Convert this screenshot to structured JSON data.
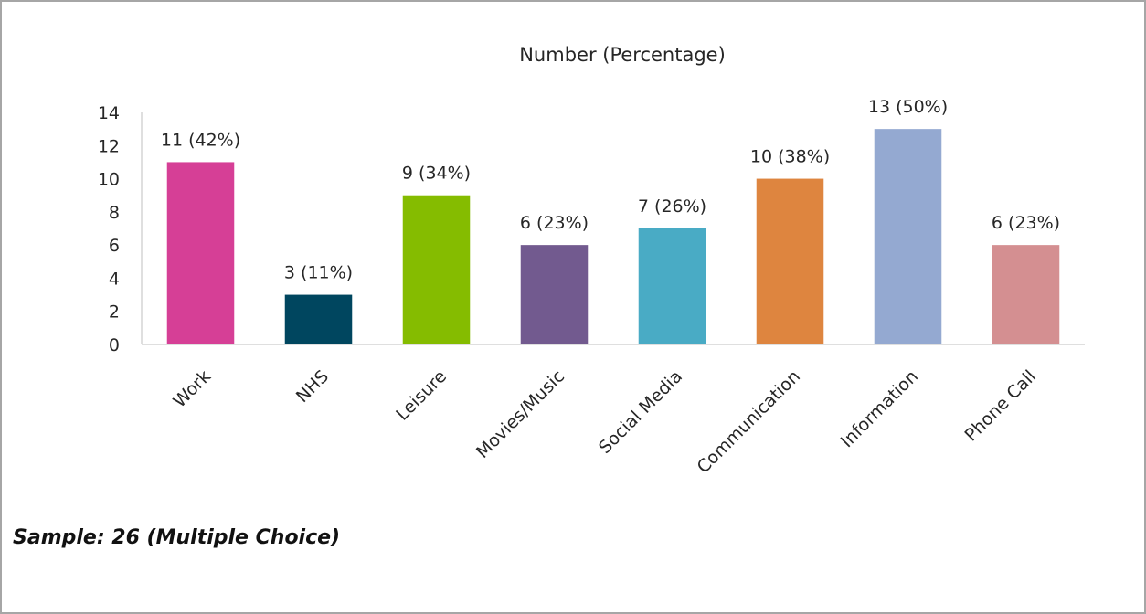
{
  "chart_data": {
    "type": "bar",
    "title": "Number (Percentage)",
    "categories": [
      "Work",
      "NHS",
      "Leisure",
      "Movies/Music",
      "Social Media",
      "Communication",
      "Information",
      "Phone Call"
    ],
    "values": [
      11,
      3,
      9,
      6,
      7,
      10,
      13,
      6
    ],
    "data_labels": [
      "11 (42%)",
      "3 (11%)",
      "9 (34%)",
      "6 (23%)",
      "7 (26%)",
      "10 (38%)",
      "13 (50%)",
      "6 (23%)"
    ],
    "colors": [
      "#d63f96",
      "#00465f",
      "#85bc00",
      "#725a8f",
      "#49abc5",
      "#de853f",
      "#94a9d1",
      "#d48f91"
    ],
    "ylim": [
      0,
      14
    ],
    "yticks": [
      0,
      2,
      4,
      6,
      8,
      10,
      12,
      14
    ],
    "xlabel": "",
    "ylabel": "",
    "grid": false,
    "legend": "none"
  },
  "footnote": "Sample: 26 (Multiple Choice)"
}
